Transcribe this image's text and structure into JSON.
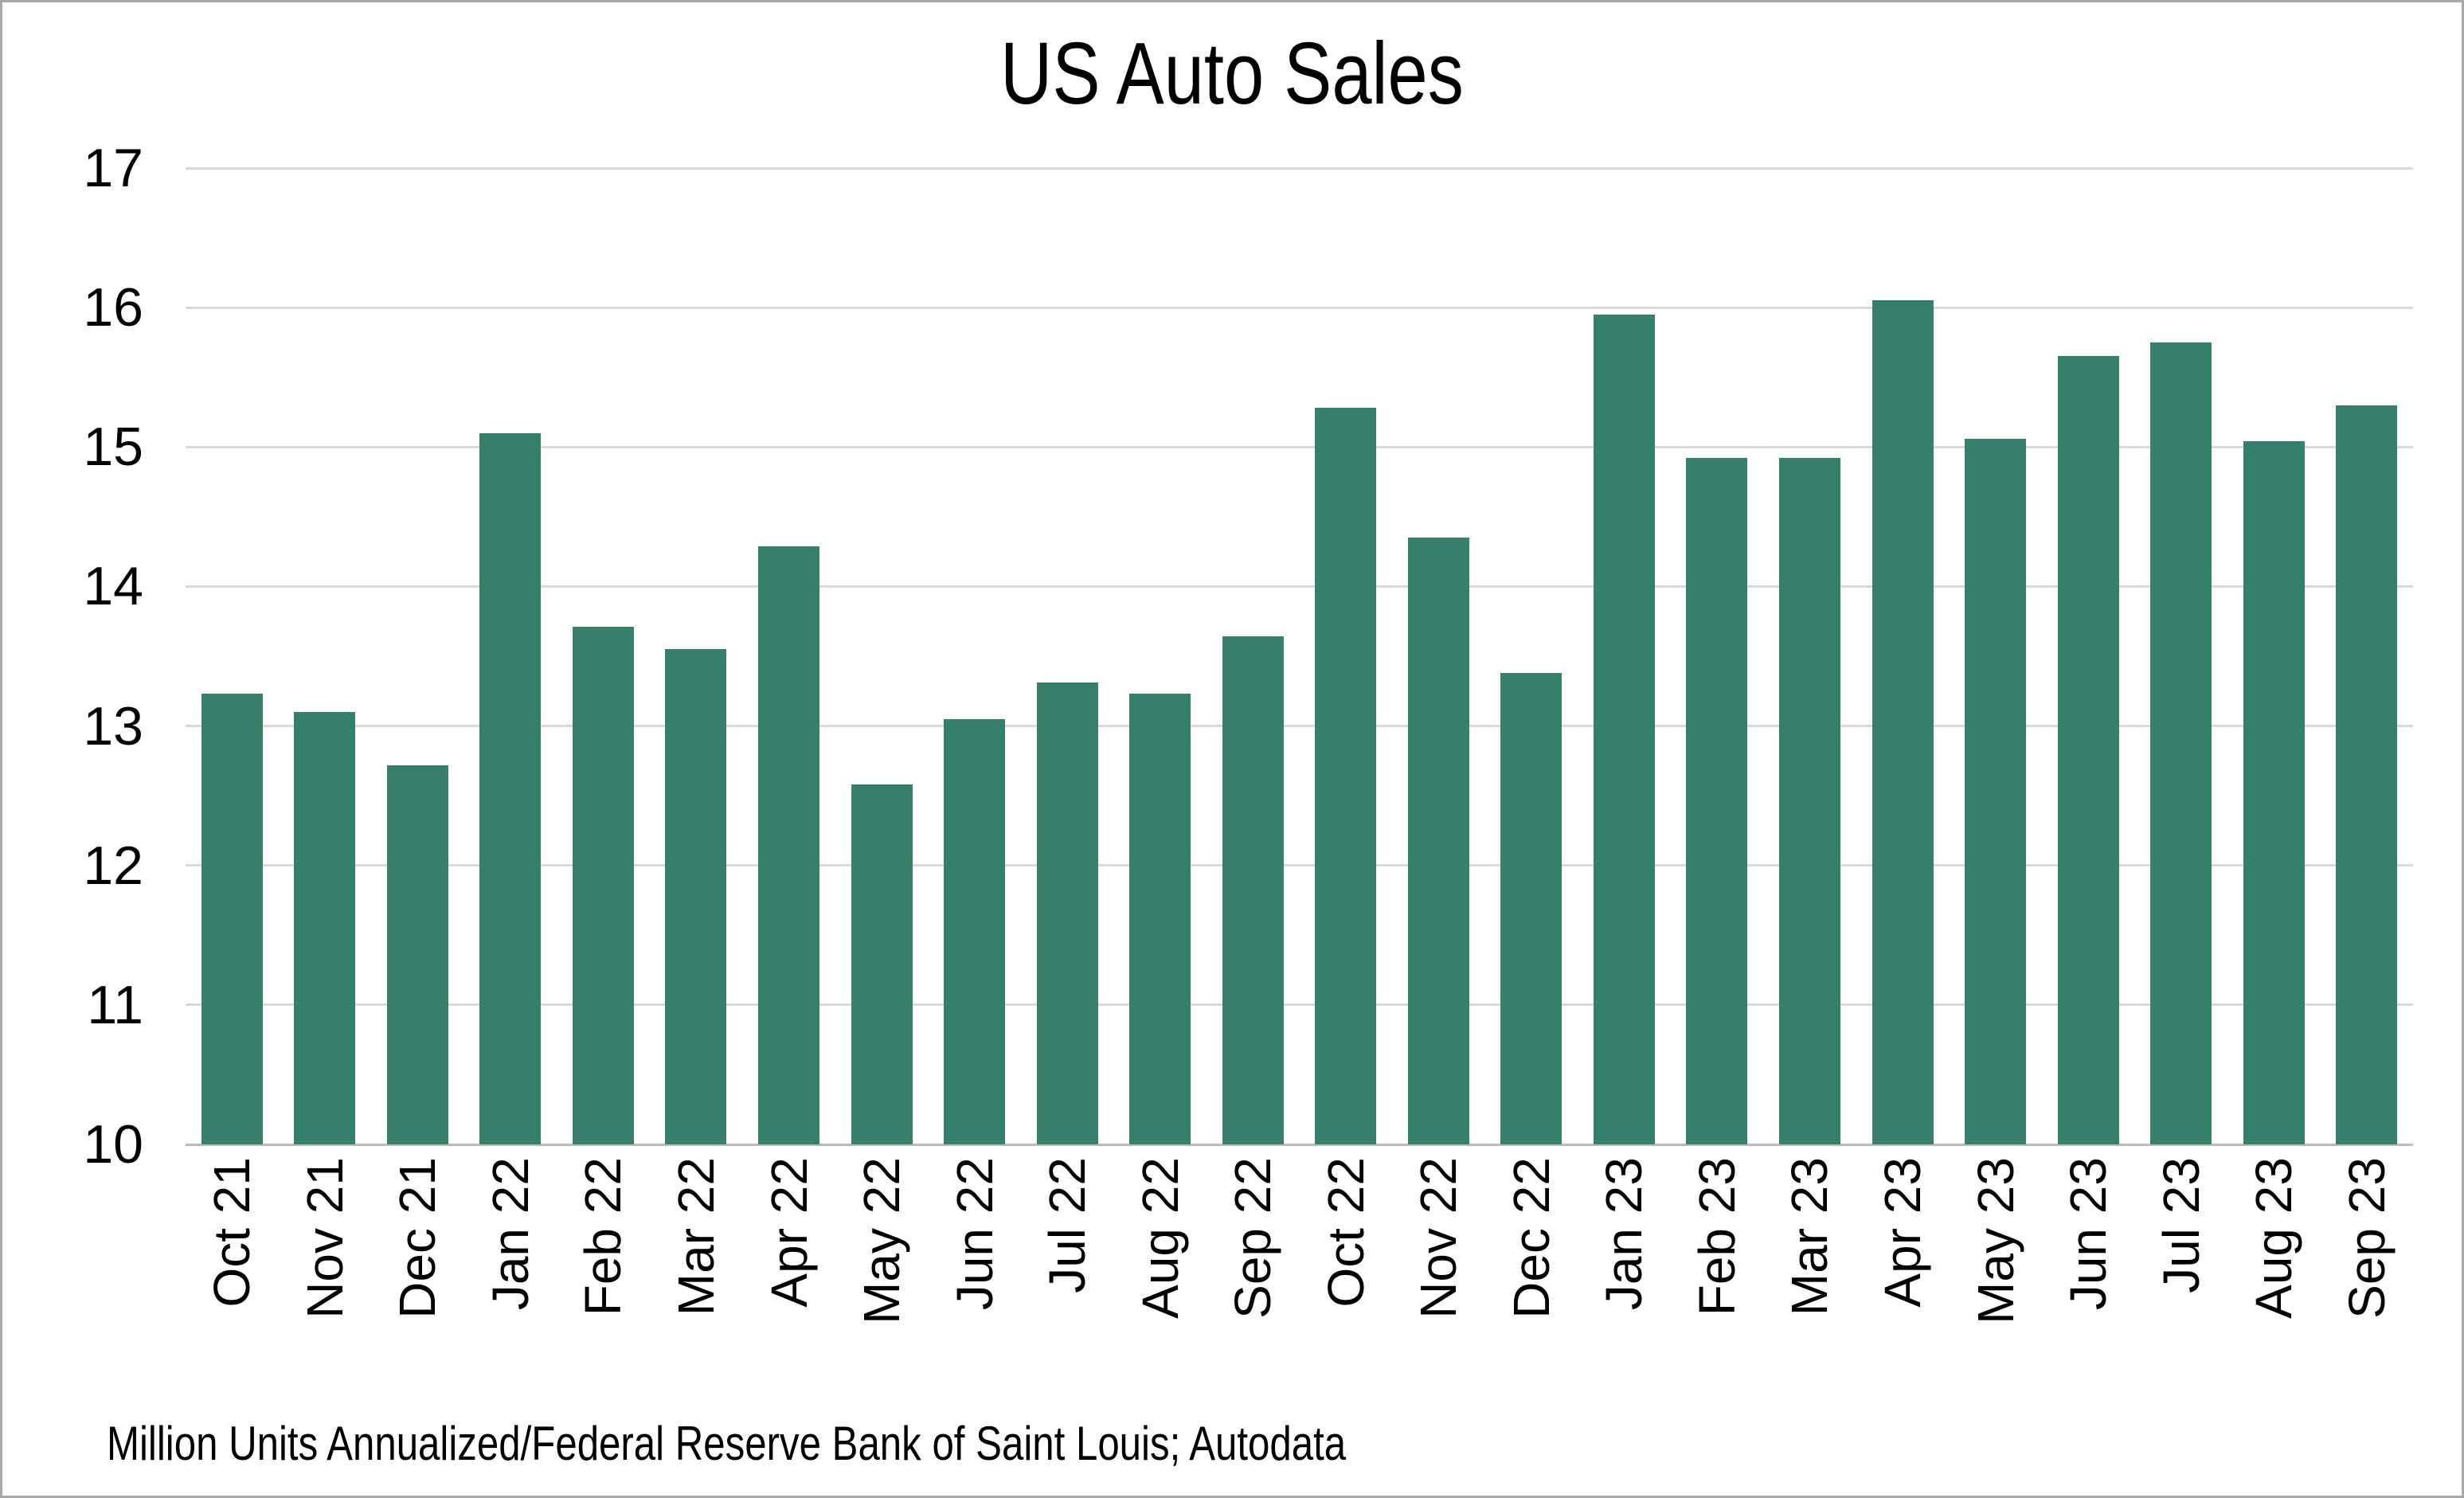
{
  "title": "US Auto Sales",
  "source_note": "Million Units Annualized/Federal Reserve Bank of Saint Louis; Autodata",
  "colors": {
    "bar": "#36806B",
    "gridline": "#D9D9D9",
    "axis_line": "#BDBDBD",
    "frame_border": "#A9A9A9",
    "text": "#000000",
    "background": "#FFFFFF"
  },
  "chart_data": {
    "type": "bar",
    "title": "US Auto Sales",
    "categories": [
      "Oct 21",
      "Nov 21",
      "Dec 21",
      "Jan 22",
      "Feb 22",
      "Mar 22",
      "Apr 22",
      "May 22",
      "Jun 22",
      "Jul 22",
      "Aug 22",
      "Sep 22",
      "Oct 22",
      "Nov 22",
      "Dec 22",
      "Jan 23",
      "Feb 23",
      "Mar 23",
      "Apr 23",
      "May 23",
      "Jun 23",
      "Jul 23",
      "Aug 23",
      "Sep 23"
    ],
    "values": [
      13.23,
      13.1,
      12.72,
      15.1,
      13.71,
      13.55,
      14.29,
      12.58,
      13.05,
      13.31,
      13.23,
      13.64,
      15.28,
      14.35,
      13.38,
      15.95,
      14.92,
      14.92,
      16.05,
      15.06,
      15.65,
      15.75,
      15.04,
      15.3
    ],
    "xlabel": "",
    "ylabel": "",
    "ylim": [
      10,
      17
    ],
    "yticks": [
      17,
      16,
      15,
      14,
      13,
      12,
      11,
      10
    ],
    "grid": "horizontal",
    "legend": "none",
    "x_tick_rotation_degrees": 90
  }
}
